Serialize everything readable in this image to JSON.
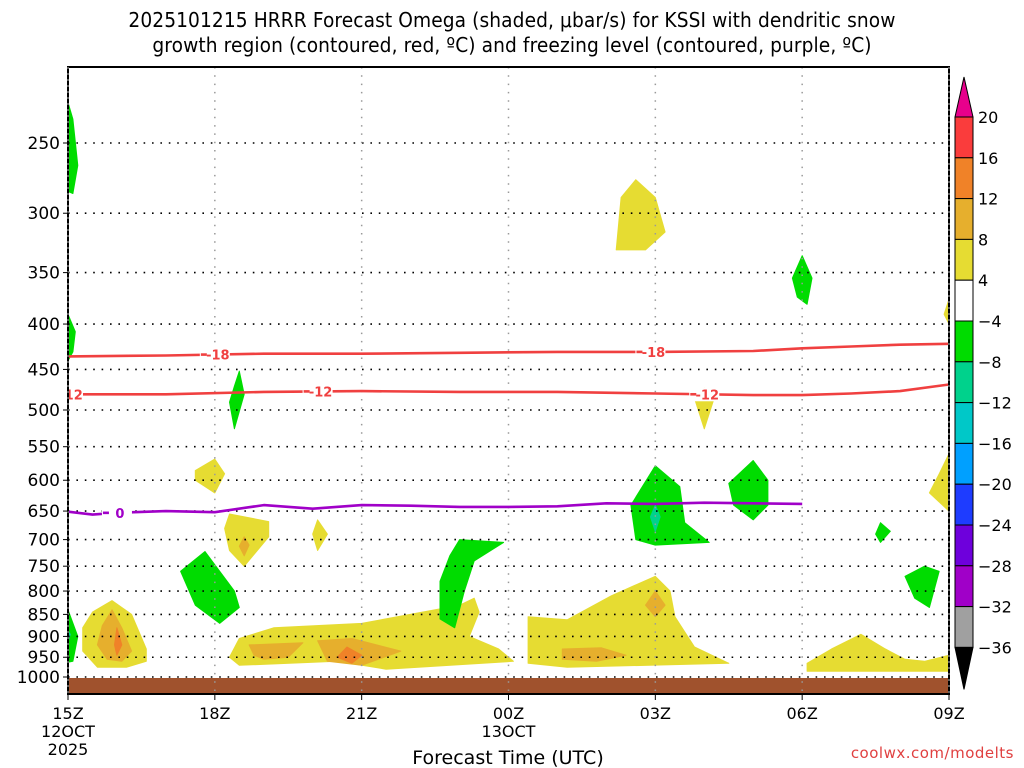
{
  "title": {
    "line1": "2025101215 HRRR Forecast Omega (shaded, μbar/s) for KSSI with dendritic snow",
    "line2": "growth region (contoured, red, ºC) and freezing level (contoured, purple, ºC)"
  },
  "watermark": "coolwx.com/modelts",
  "chart_data": {
    "type": "heatmap",
    "title": "2025101215 HRRR Forecast Omega (shaded, μbar/s) for KSSI with dendritic snow growth region (contoured, red, ºC) and freezing level (contoured, purple, ºC)",
    "xlabel": "Forecast Time (UTC)",
    "ylabel": "",
    "x_unit": "forecast hour",
    "xlim": [
      0,
      18
    ],
    "ylim_hPa": [
      1000,
      200
    ],
    "y_scale": "log-pressure",
    "grid": true,
    "x_ticks": [
      {
        "hour": 0,
        "label": "15Z",
        "sub1": "12OCT",
        "sub2": "2025"
      },
      {
        "hour": 3,
        "label": "18Z",
        "sub1": "",
        "sub2": ""
      },
      {
        "hour": 6,
        "label": "21Z",
        "sub1": "",
        "sub2": ""
      },
      {
        "hour": 9,
        "label": "00Z",
        "sub1": "13OCT",
        "sub2": ""
      },
      {
        "hour": 12,
        "label": "03Z",
        "sub1": "",
        "sub2": ""
      },
      {
        "hour": 15,
        "label": "06Z",
        "sub1": "",
        "sub2": ""
      },
      {
        "hour": 18,
        "label": "09Z",
        "sub1": "",
        "sub2": ""
      }
    ],
    "y_ticks": [
      250,
      300,
      350,
      400,
      450,
      500,
      550,
      600,
      650,
      700,
      750,
      800,
      850,
      900,
      950,
      1000
    ],
    "colorbar": {
      "placement": "right",
      "unit": "μbar/s",
      "labels": [
        "20",
        "16",
        "12",
        "8",
        "4",
        "−4",
        "−8",
        "−12",
        "−16",
        "−20",
        "−24",
        "−28",
        "−32",
        "−36"
      ],
      "bins": [
        {
          "range": ">20",
          "color": "#e8008c"
        },
        {
          "range": "16 to 20",
          "color": "#fa3c3c"
        },
        {
          "range": "12 to 16",
          "color": "#f08228"
        },
        {
          "range": "8 to 12",
          "color": "#e6af2d"
        },
        {
          "range": "4 to 8",
          "color": "#e6dc32"
        },
        {
          "range": "-4 to 4",
          "color": "#ffffff"
        },
        {
          "range": "-8 to -4",
          "color": "#00dc00"
        },
        {
          "range": "-12 to -8",
          "color": "#00d28c"
        },
        {
          "range": "-16 to -12",
          "color": "#00c8c8"
        },
        {
          "range": "-20 to -16",
          "color": "#00a0ff"
        },
        {
          "range": "-24 to -20",
          "color": "#1e3cff"
        },
        {
          "range": "-28 to -24",
          "color": "#6e00dc"
        },
        {
          "range": "-32 to -28",
          "color": "#a000c8"
        },
        {
          "range": "-36 to -32",
          "color": "#a0a0a0"
        },
        {
          "range": "<-36",
          "color": "#000000"
        }
      ]
    },
    "ground_color": "#a0522d",
    "contours": [
      {
        "name": "-18C isotherm (dendritic growth top)",
        "color": "#f04040",
        "label": "-18",
        "label_hours": [
          3.0,
          11.9
        ],
        "points": [
          [
            0,
            435
          ],
          [
            2,
            434
          ],
          [
            4,
            432
          ],
          [
            6,
            432
          ],
          [
            8,
            431
          ],
          [
            10,
            430
          ],
          [
            12,
            430
          ],
          [
            14,
            429
          ],
          [
            15,
            426
          ],
          [
            16,
            424
          ],
          [
            17,
            422
          ],
          [
            18,
            421
          ]
        ]
      },
      {
        "name": "-12C isotherm (dendritic growth bottom)",
        "color": "#f04040",
        "label": "-12",
        "label_hours": [
          0.0,
          5.1,
          13.0
        ],
        "points": [
          [
            0,
            480
          ],
          [
            2,
            480
          ],
          [
            4,
            477
          ],
          [
            6,
            476
          ],
          [
            8,
            477
          ],
          [
            10,
            477
          ],
          [
            12,
            479
          ],
          [
            14,
            481
          ],
          [
            15,
            481
          ],
          [
            16,
            479
          ],
          [
            17,
            476
          ],
          [
            18,
            468
          ]
        ]
      },
      {
        "name": "0C isotherm (freezing level)",
        "color": "#a000c8",
        "label": "0",
        "label_hours": [
          1.0
        ],
        "points": [
          [
            -3,
            668
          ],
          [
            -2,
            662
          ],
          [
            -1,
            657
          ],
          [
            0,
            651
          ],
          [
            0.5,
            656
          ],
          [
            1,
            653
          ],
          [
            2,
            650
          ],
          [
            3,
            652
          ],
          [
            4,
            640
          ],
          [
            5,
            646
          ],
          [
            6,
            640
          ],
          [
            7,
            641
          ],
          [
            8,
            643
          ],
          [
            9,
            643
          ],
          [
            10,
            642
          ],
          [
            11,
            637
          ],
          [
            12,
            638
          ],
          [
            13,
            636
          ],
          [
            14,
            637
          ],
          [
            15,
            638
          ]
        ]
      }
    ],
    "shaded_regions": [
      {
        "bin": "-8 to -4",
        "points": [
          [
            0.0,
            225
          ],
          [
            0.1,
            235
          ],
          [
            0.2,
            265
          ],
          [
            0.1,
            285
          ],
          [
            -0.1,
            282
          ],
          [
            -0.2,
            260
          ],
          [
            -0.1,
            235
          ]
        ]
      },
      {
        "bin": "-8 to -4",
        "points": [
          [
            0.0,
            390
          ],
          [
            0.15,
            408
          ],
          [
            0.1,
            430
          ],
          [
            0.0,
            440
          ],
          [
            -0.1,
            425
          ],
          [
            -0.15,
            410
          ]
        ]
      },
      {
        "bin": "-8 to -4",
        "points": [
          [
            -0.2,
            800
          ],
          [
            0.0,
            840
          ],
          [
            0.2,
            900
          ],
          [
            0.1,
            960
          ],
          [
            -0.1,
            965
          ],
          [
            -0.4,
            935
          ],
          [
            -0.6,
            890
          ],
          [
            -0.4,
            845
          ]
        ]
      },
      {
        "bin": "-12 to -8",
        "points": [
          [
            -0.05,
            880
          ],
          [
            0.05,
            895
          ],
          [
            0.0,
            910
          ],
          [
            -0.1,
            900
          ]
        ]
      },
      {
        "bin": "4 to 8",
        "points": [
          [
            0.9,
            820
          ],
          [
            1.3,
            850
          ],
          [
            1.6,
            930
          ],
          [
            1.6,
            960
          ],
          [
            1.2,
            975
          ],
          [
            0.6,
            975
          ],
          [
            0.3,
            935
          ],
          [
            0.3,
            880
          ],
          [
            0.5,
            845
          ]
        ]
      },
      {
        "bin": "8 to 12",
        "points": [
          [
            0.9,
            840
          ],
          [
            1.1,
            880
          ],
          [
            1.3,
            935
          ],
          [
            1.1,
            960
          ],
          [
            0.8,
            955
          ],
          [
            0.6,
            920
          ],
          [
            0.7,
            875
          ]
        ]
      },
      {
        "bin": "12 to 16",
        "points": [
          [
            1.0,
            880
          ],
          [
            1.1,
            920
          ],
          [
            1.0,
            945
          ],
          [
            0.95,
            920
          ]
        ]
      },
      {
        "bin": "-8 to -4",
        "points": [
          [
            2.8,
            722
          ],
          [
            3.4,
            800
          ],
          [
            3.5,
            835
          ],
          [
            3.1,
            870
          ],
          [
            2.6,
            830
          ],
          [
            2.3,
            760
          ]
        ]
      },
      {
        "bin": "4 to 8",
        "points": [
          [
            3.0,
            568
          ],
          [
            3.2,
            590
          ],
          [
            3.0,
            620
          ],
          [
            2.6,
            600
          ],
          [
            2.6,
            585
          ]
        ]
      },
      {
        "bin": "-8 to -4",
        "points": [
          [
            3.5,
            452
          ],
          [
            3.6,
            480
          ],
          [
            3.4,
            525
          ],
          [
            3.3,
            490
          ],
          [
            3.4,
            470
          ]
        ]
      },
      {
        "bin": "4 to 8",
        "points": [
          [
            3.3,
            655
          ],
          [
            4.1,
            668
          ],
          [
            4.1,
            695
          ],
          [
            3.6,
            750
          ],
          [
            3.3,
            720
          ],
          [
            3.2,
            680
          ]
        ]
      },
      {
        "bin": "8 to 12",
        "points": [
          [
            3.6,
            695
          ],
          [
            3.7,
            710
          ],
          [
            3.6,
            730
          ],
          [
            3.5,
            712
          ]
        ]
      },
      {
        "bin": "4 to 8",
        "points": [
          [
            5.1,
            665
          ],
          [
            5.3,
            690
          ],
          [
            5.1,
            720
          ],
          [
            5.0,
            690
          ]
        ]
      },
      {
        "bin": "4 to 8",
        "points": [
          [
            3.5,
            905
          ],
          [
            4.2,
            880
          ],
          [
            6.0,
            870
          ],
          [
            8.0,
            830
          ],
          [
            8.3,
            815
          ],
          [
            8.4,
            845
          ],
          [
            8.2,
            900
          ],
          [
            8.8,
            930
          ],
          [
            9.1,
            960
          ],
          [
            6.5,
            980
          ],
          [
            5.5,
            960
          ],
          [
            3.5,
            970
          ],
          [
            3.3,
            950
          ]
        ]
      },
      {
        "bin": "8 to 12",
        "points": [
          [
            3.7,
            920
          ],
          [
            4.8,
            915
          ],
          [
            4.5,
            950
          ],
          [
            4.0,
            955
          ],
          [
            3.8,
            945
          ]
        ]
      },
      {
        "bin": "8 to 12",
        "points": [
          [
            5.1,
            910
          ],
          [
            5.8,
            905
          ],
          [
            6.8,
            935
          ],
          [
            6.0,
            970
          ],
          [
            5.3,
            960
          ]
        ]
      },
      {
        "bin": "12 to 16",
        "points": [
          [
            5.7,
            925
          ],
          [
            6.0,
            945
          ],
          [
            5.8,
            965
          ],
          [
            5.5,
            950
          ]
        ]
      },
      {
        "bin": "-8 to -4",
        "points": [
          [
            8.0,
            700
          ],
          [
            8.9,
            705
          ],
          [
            8.3,
            740
          ],
          [
            8.1,
            800
          ],
          [
            7.9,
            880
          ],
          [
            7.6,
            860
          ],
          [
            7.6,
            780
          ],
          [
            7.8,
            730
          ]
        ]
      },
      {
        "bin": "4 to 8",
        "points": [
          [
            9.4,
            855
          ],
          [
            10.2,
            862
          ],
          [
            11.1,
            810
          ],
          [
            12.0,
            770
          ],
          [
            12.3,
            800
          ],
          [
            12.4,
            855
          ],
          [
            12.8,
            925
          ],
          [
            13.5,
            965
          ],
          [
            10.2,
            975
          ],
          [
            9.4,
            965
          ]
        ]
      },
      {
        "bin": "8 to 12",
        "points": [
          [
            10.1,
            930
          ],
          [
            10.9,
            927
          ],
          [
            11.4,
            945
          ],
          [
            10.8,
            960
          ],
          [
            10.1,
            955
          ]
        ]
      },
      {
        "bin": "8 to 12",
        "points": [
          [
            12.0,
            800
          ],
          [
            12.2,
            830
          ],
          [
            12.0,
            855
          ],
          [
            11.8,
            830
          ]
        ]
      },
      {
        "bin": "-8 to -4",
        "points": [
          [
            12.0,
            578
          ],
          [
            12.5,
            610
          ],
          [
            12.6,
            670
          ],
          [
            13.1,
            705
          ],
          [
            12.0,
            710
          ],
          [
            11.6,
            700
          ],
          [
            11.5,
            640
          ]
        ]
      },
      {
        "bin": "-12 to -8",
        "points": [
          [
            12.0,
            640
          ],
          [
            12.1,
            660
          ],
          [
            12.0,
            685
          ],
          [
            11.9,
            660
          ]
        ]
      },
      {
        "bin": "-8 to -4",
        "points": [
          [
            14.0,
            570
          ],
          [
            14.3,
            600
          ],
          [
            14.3,
            640
          ],
          [
            14.0,
            665
          ],
          [
            13.6,
            640
          ],
          [
            13.5,
            605
          ]
        ]
      },
      {
        "bin": "-8 to -4",
        "points": [
          [
            15.0,
            335
          ],
          [
            15.2,
            355
          ],
          [
            15.1,
            380
          ],
          [
            14.9,
            373
          ],
          [
            14.8,
            355
          ]
        ]
      },
      {
        "bin": "4 to 8",
        "points": [
          [
            11.3,
            288
          ],
          [
            11.6,
            275
          ],
          [
            12.0,
            288
          ],
          [
            12.2,
            315
          ],
          [
            11.8,
            330
          ],
          [
            11.2,
            330
          ]
        ]
      },
      {
        "bin": "4 to 8",
        "points": [
          [
            13.0,
            472
          ],
          [
            13.2,
            485
          ],
          [
            13.0,
            525
          ],
          [
            12.8,
            485
          ]
        ]
      },
      {
        "bin": "-8 to -4",
        "points": [
          [
            16.6,
            670
          ],
          [
            16.8,
            685
          ],
          [
            16.6,
            705
          ],
          [
            16.5,
            690
          ]
        ]
      },
      {
        "bin": "-8 to -4",
        "points": [
          [
            17.5,
            750
          ],
          [
            17.8,
            760
          ],
          [
            17.6,
            835
          ],
          [
            17.3,
            815
          ],
          [
            17.1,
            770
          ]
        ]
      },
      {
        "bin": "4 to 8",
        "points": [
          [
            15.1,
            965
          ],
          [
            15.6,
            930
          ],
          [
            16.2,
            895
          ],
          [
            16.7,
            930
          ],
          [
            17.1,
            955
          ],
          [
            17.5,
            960
          ],
          [
            18.0,
            945
          ],
          [
            18.0,
            985
          ],
          [
            15.1,
            985
          ]
        ]
      },
      {
        "bin": "4 to 8",
        "points": [
          [
            18.0,
            560
          ],
          [
            18.0,
            650
          ],
          [
            17.6,
            620
          ],
          [
            17.8,
            590
          ]
        ]
      },
      {
        "bin": "4 to 8",
        "points": [
          [
            18.0,
            375
          ],
          [
            18.0,
            400
          ],
          [
            17.9,
            390
          ]
        ]
      }
    ]
  }
}
